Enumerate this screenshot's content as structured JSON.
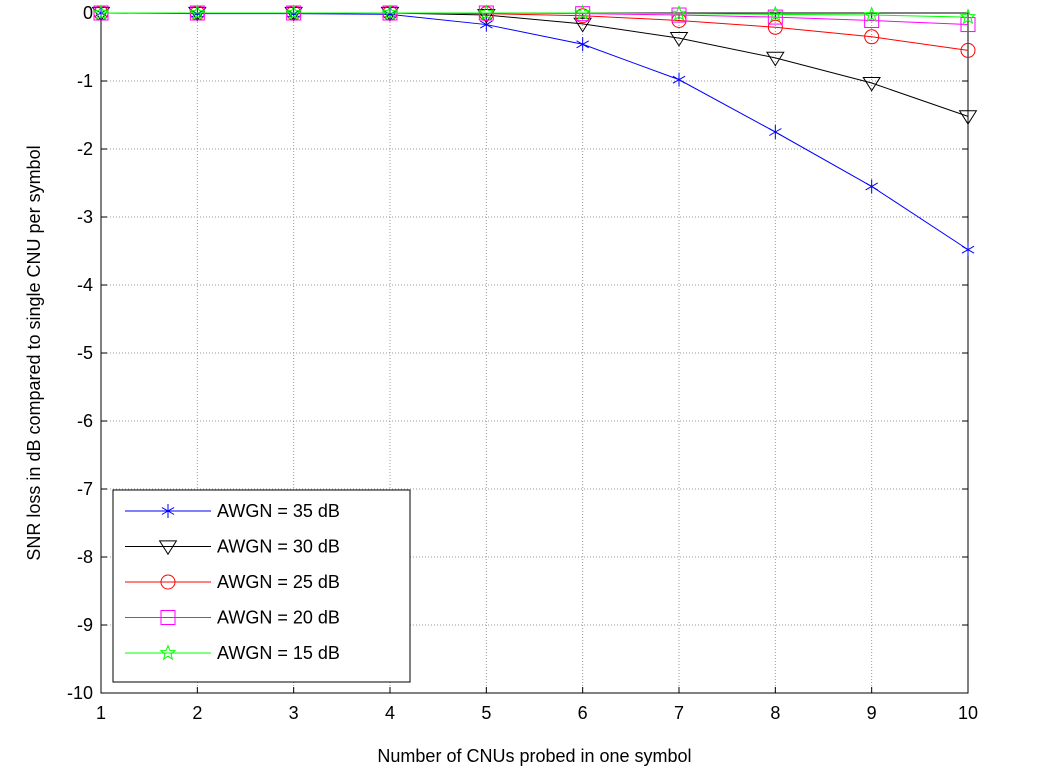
{
  "chart_data": {
    "type": "line",
    "title": "",
    "xlabel": "Number of CNUs probed in one symbol",
    "ylabel": "SNR loss in dB compared to single CNU per symbol",
    "xlim": [
      1,
      10
    ],
    "ylim": [
      -10,
      0
    ],
    "xticks": [
      "1",
      "2",
      "3",
      "4",
      "5",
      "6",
      "7",
      "8",
      "9",
      "10"
    ],
    "yticks": [
      "0",
      "-1",
      "-2",
      "-3",
      "-4",
      "-5",
      "-6",
      "-7",
      "-8",
      "-9",
      "-10"
    ],
    "grid": true,
    "legend_position": "bottom-left",
    "x": [
      1,
      2,
      3,
      4,
      5,
      6,
      7,
      8,
      9,
      10
    ],
    "series": [
      {
        "name": "AWGN = 35 dB",
        "color": "#0000ff",
        "marker": "asterisk",
        "values": [
          0,
          -0.01,
          -0.01,
          -0.02,
          -0.17,
          -0.46,
          -0.98,
          -1.75,
          -2.55,
          -3.48
        ]
      },
      {
        "name": "AWGN = 30 dB",
        "color": "#000000",
        "marker": "triangle-down",
        "values": [
          0,
          0,
          0,
          0,
          -0.03,
          -0.16,
          -0.37,
          -0.66,
          -1.03,
          -1.52
        ]
      },
      {
        "name": "AWGN = 25 dB",
        "color": "#ff0000",
        "marker": "circle",
        "values": [
          0,
          0,
          0,
          0,
          -0.01,
          -0.04,
          -0.11,
          -0.21,
          -0.35,
          -0.55
        ]
      },
      {
        "name": "AWGN = 20 dB",
        "color": "#ff00ff",
        "marker": "square",
        "values": [
          0,
          0,
          0,
          0,
          0,
          -0.01,
          -0.03,
          -0.06,
          -0.11,
          -0.17
        ]
      },
      {
        "name": "AWGN = 15 dB",
        "color": "#00ff00",
        "marker": "pentagram",
        "values": [
          0,
          0,
          0,
          0,
          0,
          0,
          -0.01,
          -0.02,
          -0.03,
          -0.06
        ]
      }
    ]
  }
}
